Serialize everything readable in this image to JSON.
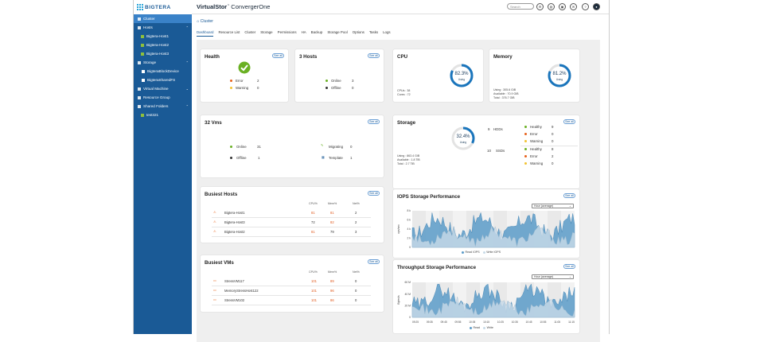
{
  "app": {
    "logo": "BIGTERA",
    "brand_bold": "VirtualStor",
    "brand_tm": "™",
    "brand_rest": " ConvergerOne",
    "search_placeholder": "Search"
  },
  "sidebar": [
    {
      "label": "Cluster",
      "level": 0,
      "active": true
    },
    {
      "label": "Hosts",
      "level": 0,
      "chev": "⌃"
    },
    {
      "label": "Bigtera-Host1",
      "level": 1
    },
    {
      "label": "Bigtera-Host2",
      "level": 1
    },
    {
      "label": "Bigtera-Host3",
      "level": 1
    },
    {
      "label": "Storage",
      "level": 0,
      "chev": "⌃"
    },
    {
      "label": "BigteraBlockDevice",
      "level": 2
    },
    {
      "label": "BigteraSharedFS",
      "level": 2
    },
    {
      "label": "Virtual Machine",
      "level": 0,
      "chev": "⌄"
    },
    {
      "label": "Resource Group",
      "level": 0
    },
    {
      "label": "Shared Folders",
      "level": 0,
      "chev": "⌃"
    },
    {
      "label": "test321",
      "level": 1
    }
  ],
  "breadcrumb": "Cluster",
  "tabs": [
    "Dashboard",
    "Resource List",
    "Cluster",
    "Storage",
    "Permissions",
    "HA",
    "Backup",
    "Storage Pool",
    "Options",
    "Tasks",
    "Logs"
  ],
  "see_all": "See all",
  "health": {
    "title": "Health",
    "error_label": "Error",
    "error": "2",
    "warning_label": "Warning",
    "warning": "0"
  },
  "hosts": {
    "title": "3 Hosts",
    "online_label": "Online",
    "online": "3",
    "offline_label": "Offline",
    "offline": "0"
  },
  "cpu": {
    "title": "CPU",
    "percent": 82.3,
    "percent_text": "82.3%",
    "sub": "Using",
    "cpus": "CPUs : 38",
    "cores": "Cores : 72"
  },
  "memory": {
    "title": "Memory",
    "percent": 81.2,
    "percent_text": "81.2%",
    "sub": "Using",
    "using": "Using : 305.6 GiB",
    "available": "Available : 70.9 GiB",
    "total": "Total : 376.7 GiB"
  },
  "vms": {
    "title": "32  Vms",
    "online_label": "Online",
    "online": "31",
    "offline_label": "Offline",
    "offline": "1",
    "migrating_label": "Migrating",
    "migrating": "0",
    "template_label": "Template",
    "template": "1"
  },
  "storage": {
    "title": "Storage",
    "percent": 32.4,
    "percent_text": "32.4%",
    "sub": "Using",
    "using": "Using : 863.4 GiB",
    "available": "Available : 1.8 TiB",
    "total": "Total : 2.7 TiB",
    "hdd_count": "9",
    "hdd_label": "HDDs",
    "ssd_count": "10",
    "ssd_label": "SSDs",
    "hdd_healthy": "9",
    "hdd_error": "0",
    "hdd_warning": "0",
    "ssd_healthy": "8",
    "ssd_error": "2",
    "ssd_warning": "0",
    "healthy_label": "Healthy",
    "error_label": "Error",
    "warning_label": "Warning"
  },
  "busiest_hosts": {
    "title": "Busiest Hosts",
    "headers": [
      "CPU%",
      "Mem%",
      "Net%"
    ],
    "rows": [
      {
        "name": "Bigtera-Host1",
        "cpu": "81",
        "mem": "81",
        "net": "2"
      },
      {
        "name": "Bigtera-Host3",
        "cpu": "72",
        "mem": "82",
        "net": "2"
      },
      {
        "name": "Bigtera-Host2",
        "cpu": "81",
        "mem": "79",
        "net": "3"
      }
    ]
  },
  "busiest_vms": {
    "title": "Busiest VMs",
    "headers": [
      "CPU%",
      "Mem%",
      "Net%"
    ],
    "rows": [
      {
        "name": "StressVM117",
        "cpu": "101",
        "mem": "89",
        "net": "0"
      },
      {
        "name": "MemoryStressHost122",
        "cpu": "101",
        "mem": "96",
        "net": "0"
      },
      {
        "name": "StressVM102",
        "cpu": "101",
        "mem": "86",
        "net": "0"
      }
    ]
  },
  "iops": {
    "title": "IOPS Storage Performance",
    "range": "Hour (average)",
    "ylabel": "ops/sec",
    "yticks": [
      "8 k",
      "6 k",
      "4 k",
      "2 k",
      "0"
    ],
    "legend": [
      "Read IOPS",
      "Write IOPS"
    ]
  },
  "throughput": {
    "title": "Throughput Storage Performance",
    "range": "Hour (average)",
    "ylabel": "Bytes/s",
    "yticks": [
      "60 M",
      "40 M",
      "20 M",
      "0"
    ],
    "xticks": [
      "09:25",
      "09:35",
      "09:45",
      "09:55",
      "10:05",
      "10:15",
      "10:25",
      "10:35",
      "10:45",
      "10:55",
      "11:05",
      "11:15"
    ],
    "legend": [
      "Read",
      "Write"
    ]
  },
  "colors": {
    "sidebar": "#1a5a96",
    "accent": "#1a75bc",
    "chart_read": "#5b9bc8",
    "chart_write": "#c9dbe8",
    "green": "#6ab023",
    "orange": "#e8611a",
    "yellow": "#f2c230"
  }
}
